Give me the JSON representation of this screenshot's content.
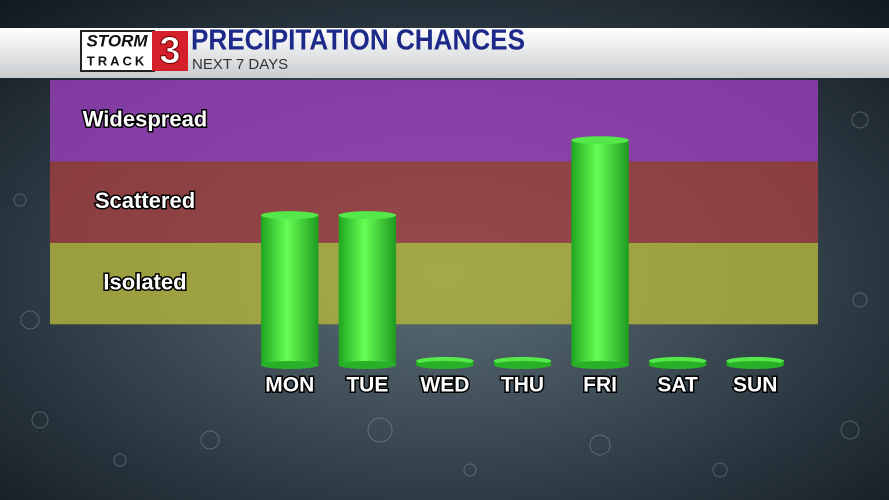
{
  "logo": {
    "word1": "STORM",
    "word2": "TRACK",
    "number": "3"
  },
  "chart_data": {
    "type": "bar",
    "title": "PRECIPITATION CHANCES",
    "subtitle": "NEXT 7 DAYS",
    "categories": [
      "MON",
      "TUE",
      "WED",
      "THU",
      "FRI",
      "SAT",
      "SUN"
    ],
    "values": [
      1.84,
      1.84,
      0.05,
      0.05,
      2.76,
      0.05,
      0.05
    ],
    "color": "#3ef23e",
    "ylim": [
      0,
      3.5
    ],
    "bands": [
      {
        "label": "Isolated",
        "range": [
          0.5,
          1.5
        ],
        "color": "#b5b63c"
      },
      {
        "label": "Scattered",
        "range": [
          1.5,
          2.5
        ],
        "color": "#a4403e"
      },
      {
        "label": "Widespread",
        "range": [
          2.5,
          3.5
        ],
        "color": "#9a3fbb"
      }
    ]
  }
}
